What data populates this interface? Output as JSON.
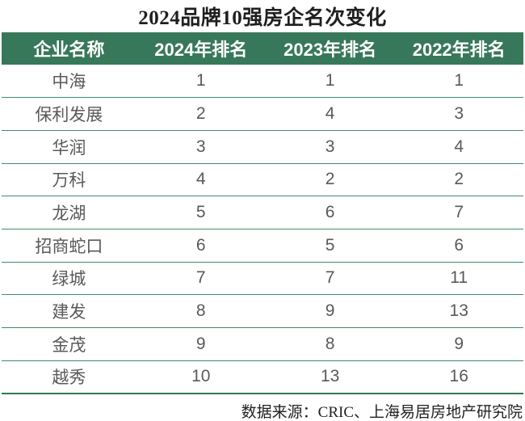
{
  "title": "2024品牌10强房企名次变化",
  "chart_data": {
    "type": "table",
    "title": "2024品牌10强房企名次变化",
    "columns": [
      "企业名称",
      "2024年排名",
      "2023年排名",
      "2022年排名"
    ],
    "rows": [
      [
        "中海",
        1,
        1,
        1
      ],
      [
        "保利发展",
        2,
        4,
        3
      ],
      [
        "华润",
        3,
        3,
        4
      ],
      [
        "万科",
        4,
        2,
        2
      ],
      [
        "龙湖",
        5,
        6,
        7
      ],
      [
        "招商蛇口",
        6,
        5,
        6
      ],
      [
        "绿城",
        7,
        7,
        11
      ],
      [
        "建发",
        8,
        9,
        13
      ],
      [
        "金茂",
        9,
        8,
        9
      ],
      [
        "越秀",
        10,
        13,
        16
      ]
    ],
    "source_note": "数据来源：CRIC、上海易居房地产研究院"
  },
  "colors": {
    "header_bg": "#38785a",
    "row_line": "#3f8c64",
    "bottom_line": "#2d7a52",
    "body_text": "#595959",
    "header_text": "#ffffff",
    "title_text": "#1f1f1f"
  }
}
